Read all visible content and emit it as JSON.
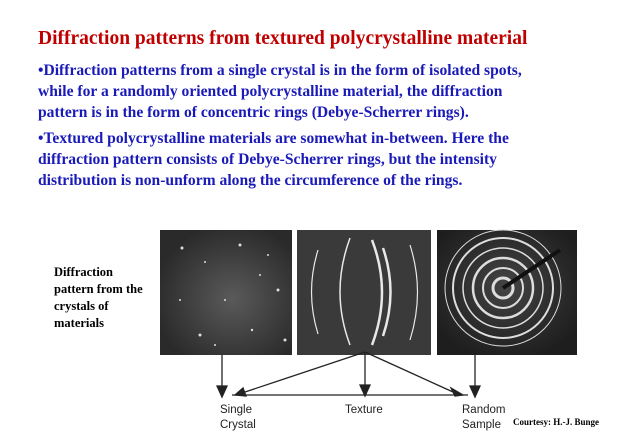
{
  "title": "Diffraction patterns from textured polycrystalline material",
  "bullets": [
    [
      "•Diffraction patterns from a single crystal is in the form of isolated spots,",
      "while for a randomly oriented polycrystalline material, the diffraction",
      "pattern is in the form of concentric rings (Debye-Scherrer rings)."
    ],
    [
      "•Textured polycrystalline materials are somewhat in-between.  Here the",
      "diffraction pattern consists of Debye-Scherrer rings, but the intensity",
      "distribution is non-unform along the circumference of the rings."
    ]
  ],
  "figure_label": [
    "Diffraction",
    "pattern from the",
    "crystals of",
    "materials"
  ],
  "diagram": {
    "single": [
      "Single",
      "Crystal"
    ],
    "texture": "Texture",
    "random": [
      "Random",
      "Sample"
    ],
    "courtesy": "Courtesy: H.-J. Bunge"
  }
}
